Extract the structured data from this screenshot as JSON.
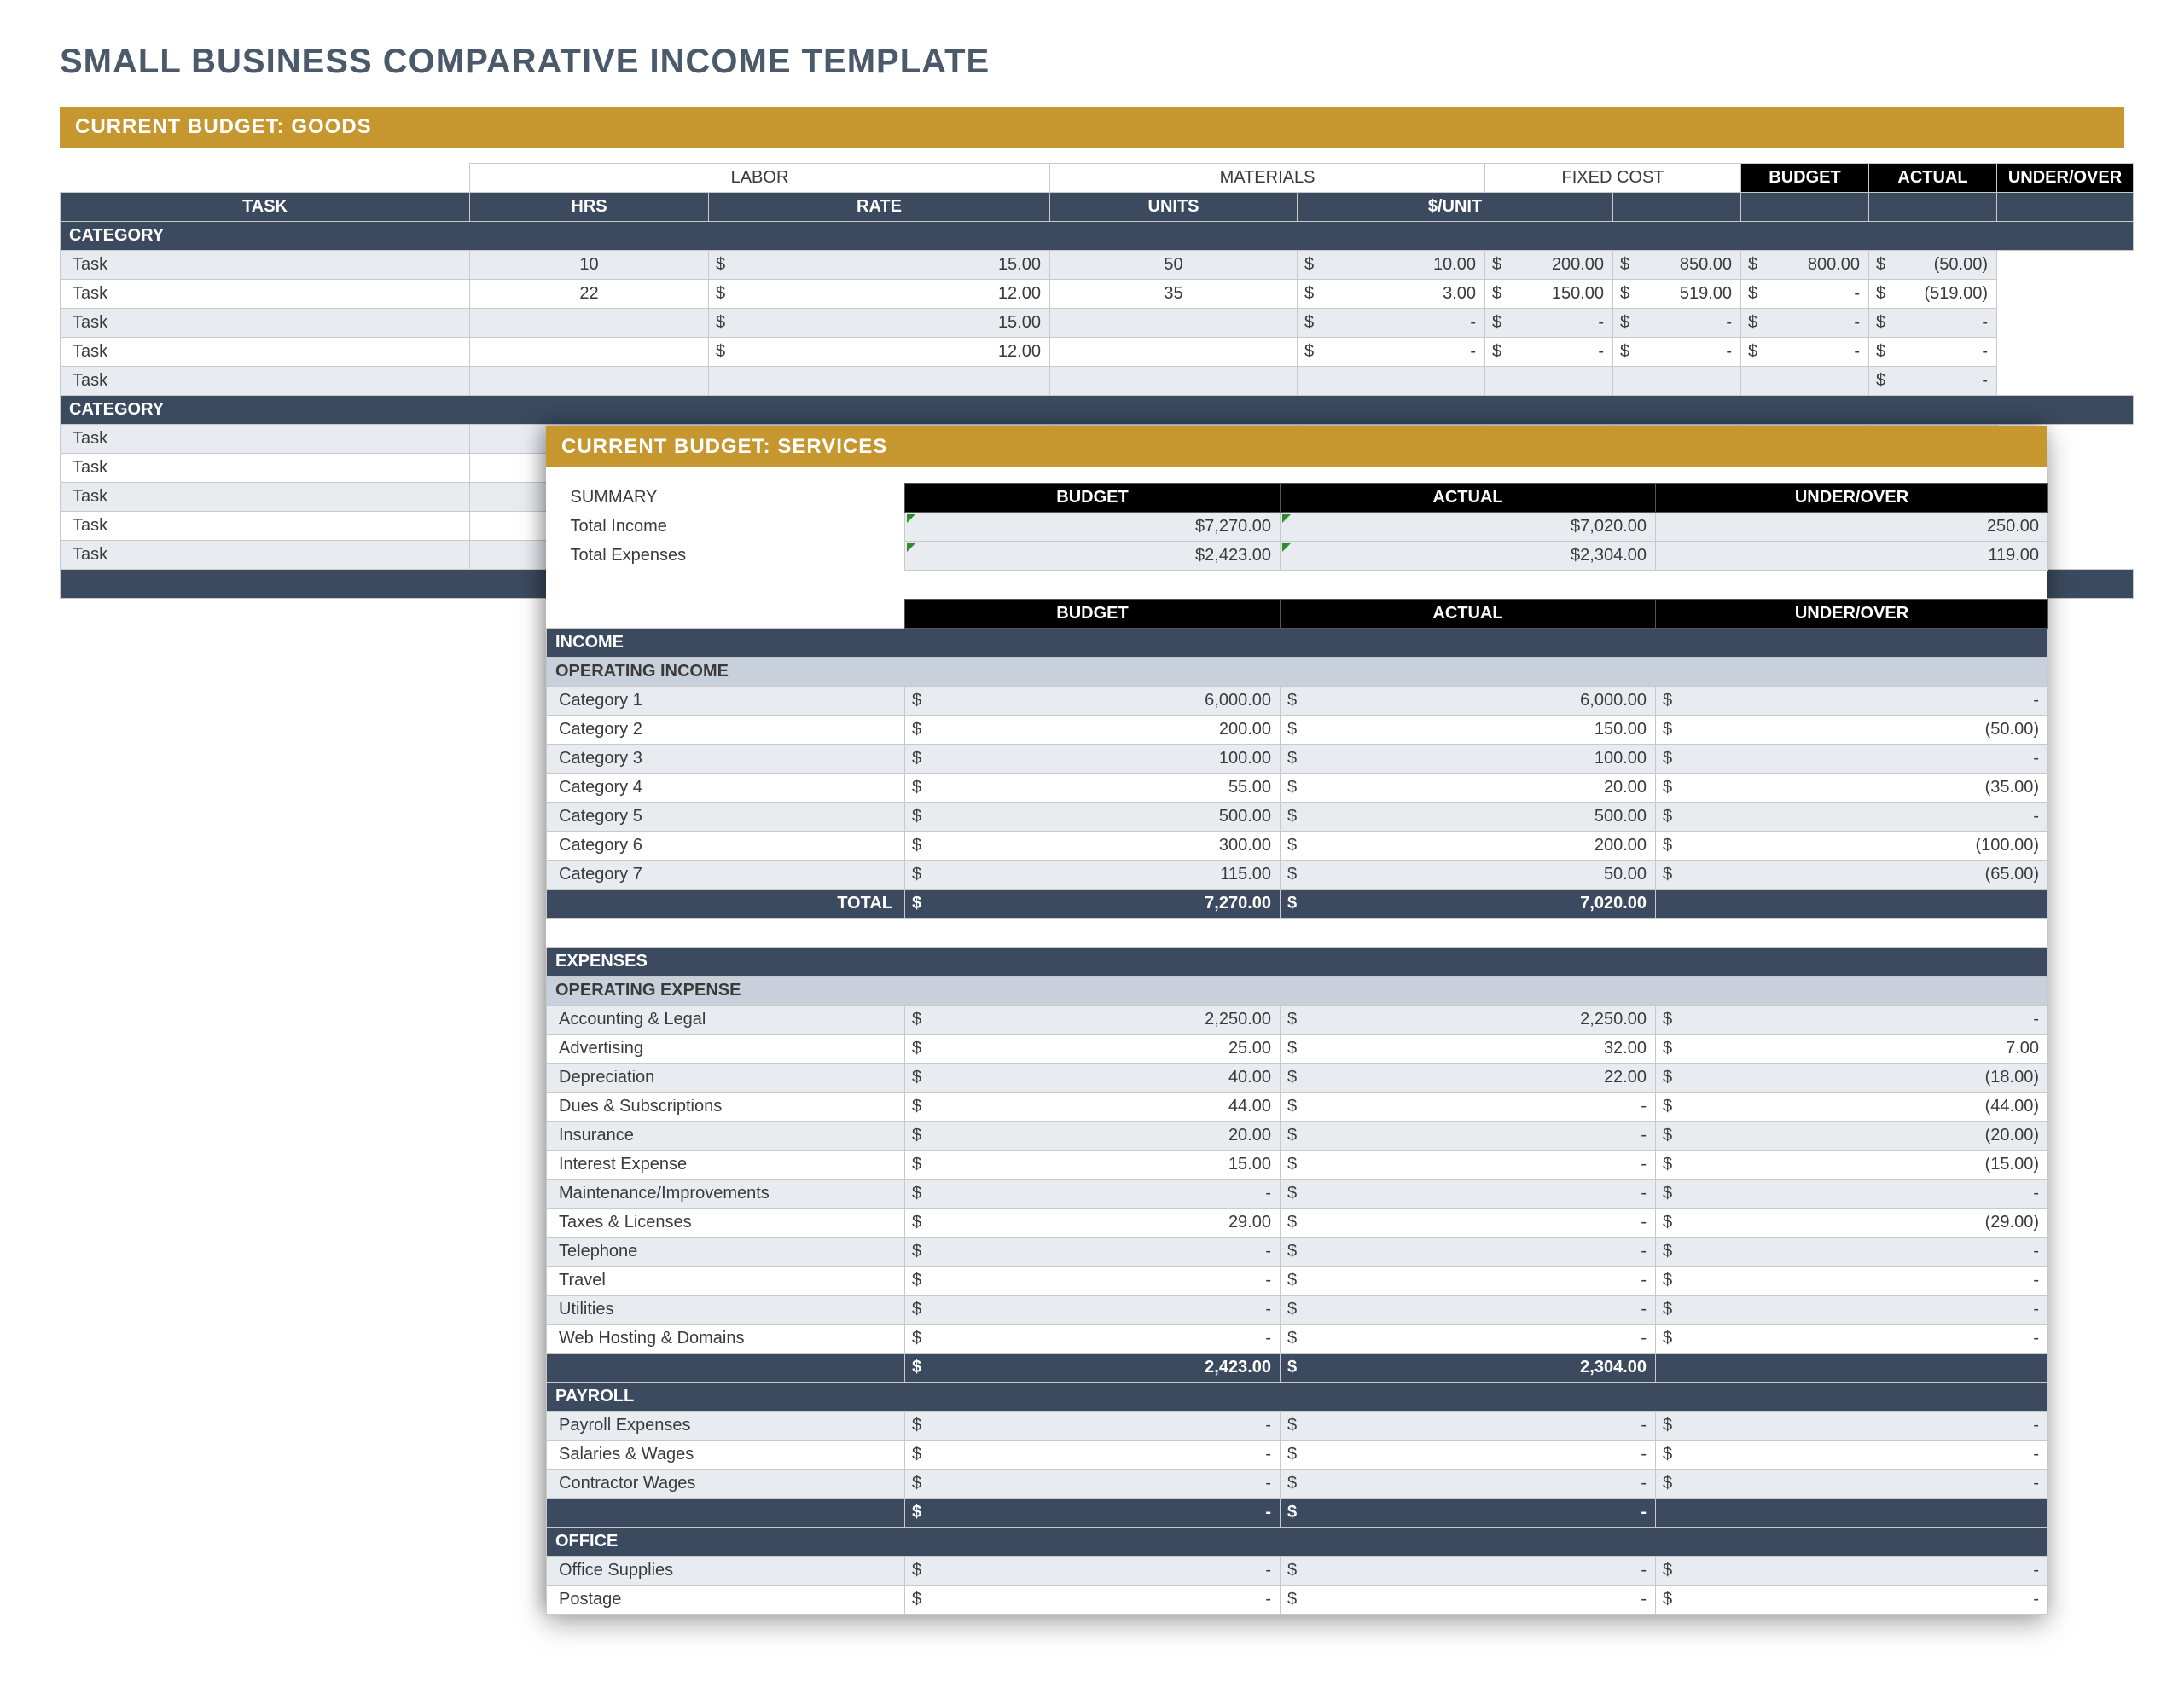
{
  "page_title": "SMALL BUSINESS COMPARATIVE INCOME TEMPLATE",
  "colors": {
    "banner": "#c6972f",
    "header_dark": "#3b4a5f",
    "header_black": "#000000",
    "row_alt": "#e8ecf0",
    "subheader": "#c8d0dc",
    "text_title": "#4a5a6a"
  },
  "goods": {
    "banner": "CURRENT BUDGET: GOODS",
    "group_headers": {
      "labor": "LABOR",
      "materials": "MATERIALS",
      "fixed_cost": "FIXED COST",
      "budget": "BUDGET",
      "actual": "ACTUAL",
      "under_over": "UNDER/OVER"
    },
    "col_headers": {
      "task": "TASK",
      "hrs": "HRS",
      "rate": "RATE",
      "units": "UNITS",
      "per_unit": "$/UNIT"
    },
    "category_label": "CATEGORY",
    "sections": [
      {
        "rows": [
          {
            "task": "Task",
            "hrs": "10",
            "rate": "15.00",
            "units": "50",
            "per_unit": "10.00",
            "fixed": "200.00",
            "budget": "850.00",
            "actual": "800.00",
            "under_over": "(50.00)"
          },
          {
            "task": "Task",
            "hrs": "22",
            "rate": "12.00",
            "units": "35",
            "per_unit": "3.00",
            "fixed": "150.00",
            "budget": "519.00",
            "actual": "-",
            "under_over": "(519.00)"
          },
          {
            "task": "Task",
            "hrs": "",
            "rate": "15.00",
            "units": "",
            "per_unit": "-",
            "fixed": "-",
            "budget": "-",
            "actual": "-",
            "under_over": "-"
          },
          {
            "task": "Task",
            "hrs": "",
            "rate": "12.00",
            "units": "",
            "per_unit": "-",
            "fixed": "-",
            "budget": "-",
            "actual": "-",
            "under_over": "-"
          },
          {
            "task": "Task",
            "hrs": "",
            "rate": "",
            "units": "",
            "per_unit": "",
            "fixed": "",
            "budget": "",
            "actual": "",
            "under_over": "-"
          }
        ]
      },
      {
        "rows": [
          {
            "task": "Task",
            "under_over": "-"
          },
          {
            "task": "Task",
            "under_over": "-"
          },
          {
            "task": "Task",
            "under_over": "-"
          },
          {
            "task": "Task",
            "under_over": "-"
          },
          {
            "task": "Task",
            "under_over": "-"
          }
        ]
      }
    ]
  },
  "services": {
    "banner": "CURRENT BUDGET: SERVICES",
    "summary_label": "SUMMARY",
    "headers": {
      "budget": "BUDGET",
      "actual": "ACTUAL",
      "under_over": "UNDER/OVER"
    },
    "summary_rows": [
      {
        "label": "Total Income",
        "budget": "7,270.00",
        "actual": "7,020.00",
        "under_over": "250.00"
      },
      {
        "label": "Total Expenses",
        "budget": "2,423.00",
        "actual": "2,304.00",
        "under_over": "119.00"
      }
    ],
    "income_label": "INCOME",
    "operating_income_label": "OPERATING INCOME",
    "income_rows": [
      {
        "label": "Category 1",
        "budget": "6,000.00",
        "actual": "6,000.00",
        "under_over": "-"
      },
      {
        "label": "Category 2",
        "budget": "200.00",
        "actual": "150.00",
        "under_over": "(50.00)"
      },
      {
        "label": "Category 3",
        "budget": "100.00",
        "actual": "100.00",
        "under_over": "-"
      },
      {
        "label": "Category 4",
        "budget": "55.00",
        "actual": "20.00",
        "under_over": "(35.00)"
      },
      {
        "label": "Category 5",
        "budget": "500.00",
        "actual": "500.00",
        "under_over": "-"
      },
      {
        "label": "Category 6",
        "budget": "300.00",
        "actual": "200.00",
        "under_over": "(100.00)"
      },
      {
        "label": "Category 7",
        "budget": "115.00",
        "actual": "50.00",
        "under_over": "(65.00)"
      }
    ],
    "income_total_label": "TOTAL",
    "income_total": {
      "budget": "7,270.00",
      "actual": "7,020.00"
    },
    "expenses_label": "EXPENSES",
    "operating_expense_label": "OPERATING EXPENSE",
    "expense_rows": [
      {
        "label": "Accounting & Legal",
        "budget": "2,250.00",
        "actual": "2,250.00",
        "under_over": "-"
      },
      {
        "label": "Advertising",
        "budget": "25.00",
        "actual": "32.00",
        "under_over": "7.00"
      },
      {
        "label": "Depreciation",
        "budget": "40.00",
        "actual": "22.00",
        "under_over": "(18.00)"
      },
      {
        "label": "Dues & Subscriptions",
        "budget": "44.00",
        "actual": "-",
        "under_over": "(44.00)"
      },
      {
        "label": "Insurance",
        "budget": "20.00",
        "actual": "-",
        "under_over": "(20.00)"
      },
      {
        "label": "Interest Expense",
        "budget": "15.00",
        "actual": "-",
        "under_over": "(15.00)"
      },
      {
        "label": "Maintenance/Improvements",
        "budget": "-",
        "actual": "-",
        "under_over": "-"
      },
      {
        "label": "Taxes & Licenses",
        "budget": "29.00",
        "actual": "-",
        "under_over": "(29.00)"
      },
      {
        "label": "Telephone",
        "budget": "-",
        "actual": "-",
        "under_over": "-"
      },
      {
        "label": "Travel",
        "budget": "-",
        "actual": "-",
        "under_over": "-"
      },
      {
        "label": "Utilities",
        "budget": "-",
        "actual": "-",
        "under_over": "-"
      },
      {
        "label": "Web Hosting & Domains",
        "budget": "-",
        "actual": "-",
        "under_over": "-"
      }
    ],
    "expense_total": {
      "budget": "2,423.00",
      "actual": "2,304.00"
    },
    "payroll_label": "PAYROLL",
    "payroll_rows": [
      {
        "label": "Payroll Expenses",
        "budget": "-",
        "actual": "-",
        "under_over": "-"
      },
      {
        "label": "Salaries & Wages",
        "budget": "-",
        "actual": "-",
        "under_over": "-"
      },
      {
        "label": "Contractor Wages",
        "budget": "-",
        "actual": "-",
        "under_over": "-"
      }
    ],
    "payroll_total": {
      "budget": "-",
      "actual": "-"
    },
    "office_label": "OFFICE",
    "office_rows": [
      {
        "label": "Office Supplies",
        "budget": "-",
        "actual": "-",
        "under_over": "-"
      },
      {
        "label": "Postage",
        "budget": "-",
        "actual": "-",
        "under_over": "-"
      }
    ]
  }
}
